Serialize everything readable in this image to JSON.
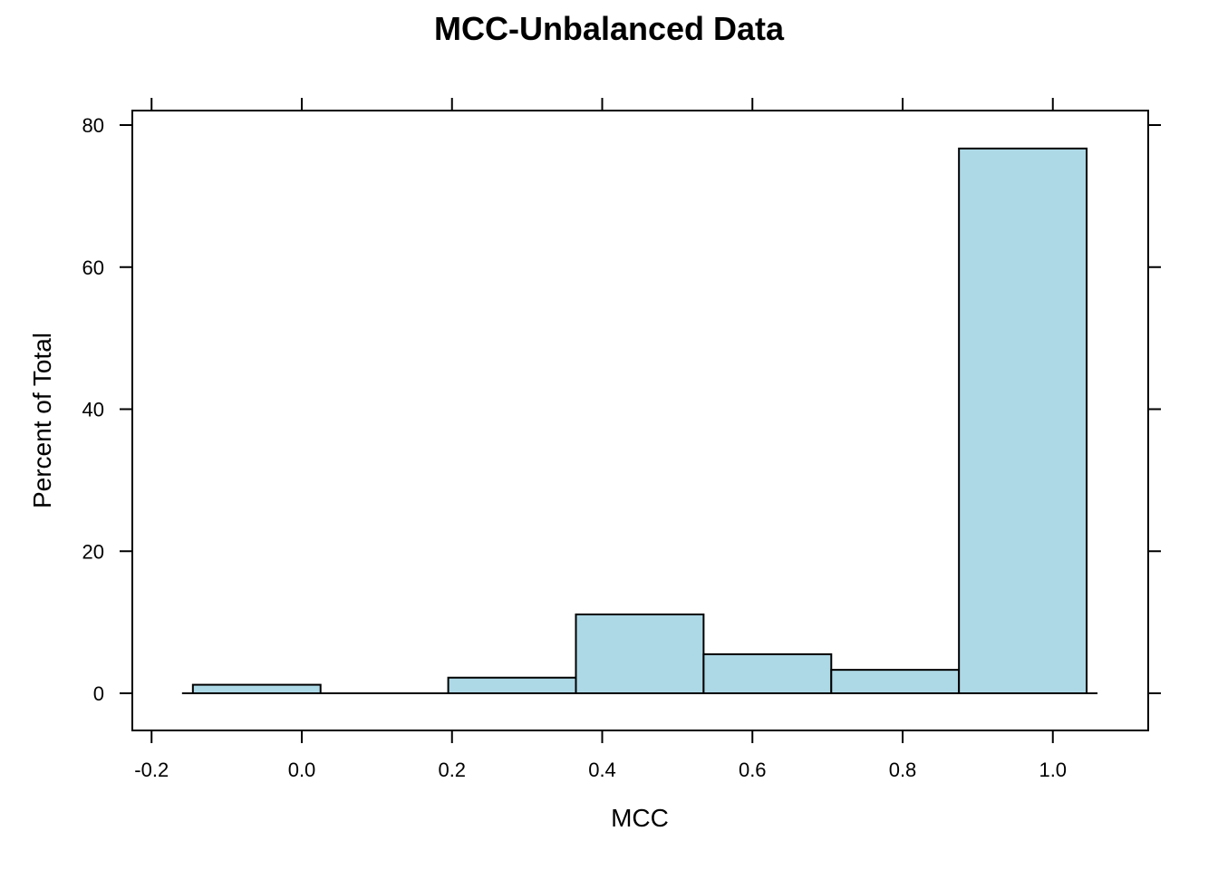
{
  "chart_data": {
    "type": "bar",
    "title": "MCC-Unbalanced Data",
    "xlabel": "MCC",
    "ylabel": "Percent of Total",
    "xlim": [
      -0.2,
      1.1
    ],
    "ylim": [
      0,
      80
    ],
    "xticks": [
      "-0.2",
      "0.0",
      "0.2",
      "0.4",
      "0.6",
      "0.8",
      "1.0"
    ],
    "yticks": [
      "0",
      "20",
      "40",
      "60",
      "80"
    ],
    "bins": [
      {
        "x0": -0.145,
        "x1": 0.025,
        "value": 1.2
      },
      {
        "x0": 0.025,
        "x1": 0.195,
        "value": 0
      },
      {
        "x0": 0.195,
        "x1": 0.365,
        "value": 2.2
      },
      {
        "x0": 0.365,
        "x1": 0.535,
        "value": 11.1
      },
      {
        "x0": 0.535,
        "x1": 0.705,
        "value": 5.5
      },
      {
        "x0": 0.705,
        "x1": 0.875,
        "value": 3.3
      },
      {
        "x0": 0.875,
        "x1": 1.045,
        "value": 76.7
      }
    ],
    "bar_color": "#add8e6",
    "grid": false
  }
}
